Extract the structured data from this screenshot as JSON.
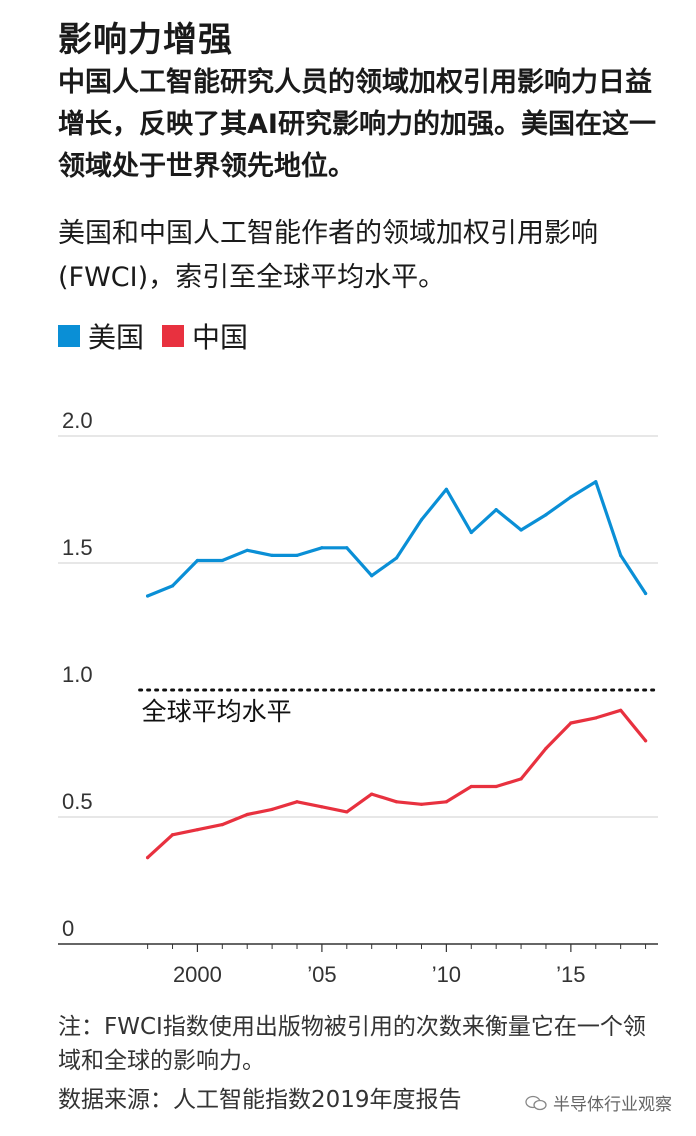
{
  "header": {
    "title": "影响力增强",
    "subtitle": "中国人工智能研究人员的领域加权引用影响力日益增长，反映了其AI研究影响力的加强。美国在这一领域处于世界领先地位。",
    "chart_description": "美国和中国人工智能作者的领域加权引用影响(FWCI)，索引至全球平均水平。"
  },
  "legend": {
    "us_label": "美国",
    "cn_label": "中国",
    "us_color": "#0a8fd6",
    "cn_color": "#e8313f"
  },
  "chart_data": {
    "type": "line",
    "title": "",
    "xlabel": "",
    "ylabel": "",
    "x": [
      1998,
      1999,
      2000,
      2001,
      2002,
      2003,
      2004,
      2005,
      2006,
      2007,
      2008,
      2009,
      2010,
      2011,
      2012,
      2013,
      2014,
      2015,
      2016,
      2017,
      2018
    ],
    "series": [
      {
        "name": "美国",
        "color": "#0a8fd6",
        "values": [
          1.37,
          1.41,
          1.51,
          1.51,
          1.55,
          1.53,
          1.53,
          1.56,
          1.56,
          1.45,
          1.52,
          1.67,
          1.79,
          1.62,
          1.71,
          1.63,
          1.69,
          1.76,
          1.82,
          1.53,
          1.38
        ]
      },
      {
        "name": "中国",
        "color": "#e8313f",
        "values": [
          0.34,
          0.43,
          0.45,
          0.47,
          0.51,
          0.53,
          0.56,
          0.54,
          0.52,
          0.59,
          0.56,
          0.55,
          0.56,
          0.62,
          0.62,
          0.65,
          0.77,
          0.87,
          0.89,
          0.92,
          0.8
        ]
      }
    ],
    "xlim": [
      1994.4,
      2018.5
    ],
    "ylim": [
      0,
      2.0
    ],
    "y_ticks": [
      {
        "value": 2.0,
        "label": "2.0"
      },
      {
        "value": 1.5,
        "label": "1.5"
      },
      {
        "value": 1.0,
        "label": "1.0"
      },
      {
        "value": 0.5,
        "label": "0.5"
      },
      {
        "value": 0,
        "label": "0"
      }
    ],
    "x_ticks": [
      {
        "value": 2000,
        "label": "2000"
      },
      {
        "value": 2005,
        "label": "’05"
      },
      {
        "value": 2010,
        "label": "’10"
      },
      {
        "value": 2015,
        "label": "’15"
      }
    ],
    "reference_line": {
      "value": 1.0,
      "label": "全球平均水平"
    },
    "grid": true,
    "legend_position": "top-left"
  },
  "footer": {
    "note": "注：FWCI指数使用出版物被引用的次数来衡量它在一个领域和全球的影响力。",
    "source": "数据来源：人工智能指数2019年度报告",
    "watermark": "半导体行业观察"
  }
}
